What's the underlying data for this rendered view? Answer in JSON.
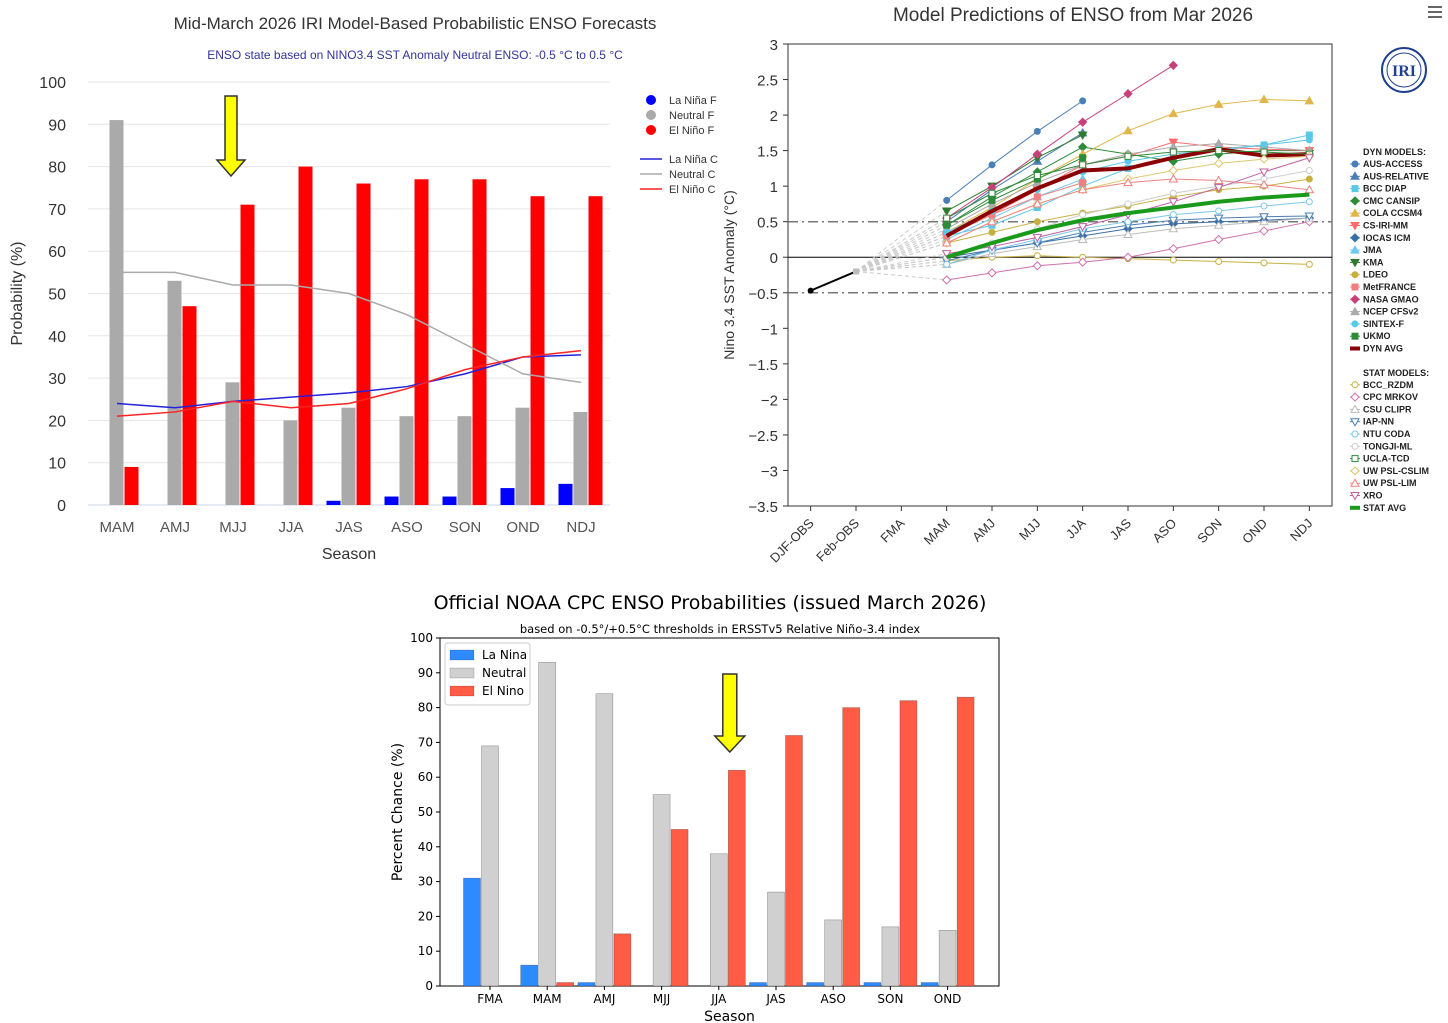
{
  "charts_meta": {
    "menu_icon": "hamburger-menu-icon",
    "iri_logo_text": "IRI"
  },
  "chart_data": [
    {
      "type": "bar",
      "title": "Mid-March 2026 IRI Model-Based Probabilistic ENSO Forecasts",
      "subtitle": "ENSO state based on NINO3.4 SST Anomaly Neutral ENSO: -0.5 °C to 0.5 °C",
      "xlabel": "Season",
      "ylabel": "Probability (%)",
      "ylim": [
        0,
        100
      ],
      "yticks": [
        0,
        10,
        20,
        30,
        40,
        50,
        60,
        70,
        80,
        90,
        100
      ],
      "categories": [
        "MAM",
        "AMJ",
        "MJJ",
        "JJA",
        "JAS",
        "ASO",
        "SON",
        "OND",
        "NDJ"
      ],
      "series": [
        {
          "name": "La Niña F",
          "color": "#0000ff",
          "values": [
            0,
            0,
            0,
            0,
            1,
            2,
            2,
            4,
            5
          ]
        },
        {
          "name": "Neutral F",
          "color": "#aaaaaa",
          "values": [
            91,
            53,
            29,
            20,
            23,
            21,
            21,
            23,
            22
          ]
        },
        {
          "name": "El Niño F",
          "color": "#ff0000",
          "values": [
            9,
            47,
            71,
            80,
            76,
            77,
            77,
            73,
            73
          ]
        }
      ],
      "lines": [
        {
          "name": "La Niña C",
          "color": "#2222dd",
          "values": [
            24,
            23,
            24.5,
            25.5,
            26.5,
            28,
            31,
            35,
            35.5
          ]
        },
        {
          "name": "Neutral C",
          "color": "#aaaaaa",
          "values": [
            55,
            55,
            52,
            52,
            50,
            45,
            38,
            31,
            29
          ]
        },
        {
          "name": "El Niño C",
          "color": "#ff2222",
          "values": [
            21,
            22,
            24.5,
            23,
            24,
            27.5,
            32,
            35,
            36.5
          ]
        }
      ],
      "arrow_at": "MJJ",
      "legend_position": "top-right"
    },
    {
      "type": "line",
      "title": "Model Predictions of ENSO from Mar 2026",
      "ylabel": "Nino 3.4 SST Anomaly (°C)",
      "ylim": [
        -3.5,
        3
      ],
      "yticks": [
        "3",
        "2.5",
        "2",
        "1.5",
        "1",
        "0.5",
        "0",
        "−0.5",
        "−1",
        "−1.5",
        "−2",
        "−2.5",
        "−3",
        "−3.5"
      ],
      "categories": [
        "DJF-OBS",
        "Feb-OBS",
        "FMA",
        "MAM",
        "AMJ",
        "MJJ",
        "JJA",
        "JAS",
        "ASO",
        "SON",
        "OND",
        "NDJ"
      ],
      "observed": [
        -0.47,
        -0.2
      ],
      "dyn_models_title": "DYN MODELS:",
      "stat_models_title": "STAT MODELS:",
      "series": [
        {
          "name": "AUS-ACCESS",
          "group": "dyn",
          "color": "#4a7fb5",
          "marker": "circle",
          "values": [
            null,
            null,
            null,
            0.8,
            1.3,
            1.77,
            2.2,
            null,
            null,
            null,
            null,
            null
          ]
        },
        {
          "name": "AUS-RELATIVE",
          "group": "dyn",
          "color": "#4a7fb5",
          "marker": "triangle",
          "values": [
            null,
            null,
            null,
            0.5,
            0.95,
            1.35,
            1.75,
            null,
            null,
            null,
            null,
            null
          ]
        },
        {
          "name": "BCC DIAP",
          "group": "dyn",
          "color": "#5bc8e8",
          "marker": "square",
          "values": [
            null,
            null,
            null,
            0.3,
            0.45,
            0.7,
            1.0,
            1.25,
            1.4,
            1.5,
            1.58,
            1.72
          ]
        },
        {
          "name": "CMC CANSIP",
          "group": "dyn",
          "color": "#2e8b3a",
          "marker": "diamond",
          "values": [
            null,
            null,
            null,
            0.45,
            0.85,
            1.2,
            1.55,
            1.45,
            1.35,
            1.45,
            1.5,
            1.5
          ]
        },
        {
          "name": "COLA CCSM4",
          "group": "dyn",
          "color": "#e0b64a",
          "marker": "triangle",
          "values": [
            null,
            null,
            null,
            0.35,
            0.7,
            1.1,
            1.45,
            1.78,
            2.02,
            2.15,
            2.22,
            2.2
          ]
        },
        {
          "name": "CS-IRI-MM",
          "group": "dyn",
          "color": "#ff6a6a",
          "marker": "triangle-down",
          "values": [
            null,
            null,
            null,
            0.3,
            0.6,
            0.95,
            1.3,
            1.42,
            1.62,
            1.55,
            1.52,
            1.5
          ]
        },
        {
          "name": "IOCAS ICM",
          "group": "dyn",
          "color": "#3a6fa5",
          "marker": "diamond",
          "values": [
            null,
            null,
            null,
            0.0,
            0.1,
            0.2,
            0.3,
            0.4,
            0.47,
            0.5,
            0.52,
            0.55
          ]
        },
        {
          "name": "JMA",
          "group": "dyn",
          "color": "#6fc8f0",
          "marker": "triangle",
          "values": [
            null,
            null,
            null,
            0.25,
            0.55,
            0.85,
            1.1,
            null,
            null,
            null,
            null,
            null
          ]
        },
        {
          "name": "KMA",
          "group": "dyn",
          "color": "#2e7a2e",
          "marker": "triangle-down",
          "values": [
            null,
            null,
            null,
            0.65,
            1.0,
            1.4,
            1.72,
            null,
            null,
            null,
            null,
            null
          ]
        },
        {
          "name": "LDEO",
          "group": "dyn",
          "color": "#c8b040",
          "marker": "circle",
          "values": [
            null,
            null,
            null,
            0.2,
            0.35,
            0.5,
            0.62,
            0.72,
            0.85,
            0.95,
            1.0,
            1.1
          ]
        },
        {
          "name": "MetFRANCE",
          "group": "dyn",
          "color": "#f08080",
          "marker": "square",
          "values": [
            null,
            null,
            null,
            0.3,
            0.6,
            0.85,
            1.05,
            null,
            null,
            null,
            null,
            null
          ]
        },
        {
          "name": "NASA GMAO",
          "group": "dyn",
          "color": "#c8407a",
          "marker": "diamond",
          "values": [
            null,
            null,
            null,
            0.55,
            0.98,
            1.45,
            1.9,
            2.3,
            2.7,
            null,
            null,
            null
          ]
        },
        {
          "name": "NCEP CFSv2",
          "group": "dyn",
          "color": "#aaaaaa",
          "marker": "triangle",
          "values": [
            null,
            null,
            null,
            0.4,
            0.75,
            1.05,
            1.3,
            1.45,
            1.55,
            1.6,
            1.55,
            1.5
          ]
        },
        {
          "name": "SINTEX-F",
          "group": "dyn",
          "color": "#5bc8e8",
          "marker": "circle",
          "values": [
            null,
            null,
            null,
            0.35,
            0.65,
            0.95,
            1.2,
            1.35,
            1.45,
            1.52,
            1.58,
            1.65
          ]
        },
        {
          "name": "UKMO",
          "group": "dyn",
          "color": "#2e8b3a",
          "marker": "square",
          "values": [
            null,
            null,
            null,
            0.45,
            0.8,
            1.1,
            1.4,
            null,
            null,
            null,
            null,
            null
          ]
        },
        {
          "name": "DYN AVG",
          "group": "dyn",
          "color": "#8b0000",
          "marker": "none",
          "width": 4,
          "values": [
            null,
            null,
            null,
            0.3,
            0.65,
            0.97,
            1.22,
            1.25,
            1.4,
            1.52,
            1.43,
            1.45
          ]
        },
        {
          "name": "BCC_RZDM",
          "group": "stat",
          "color": "#c8b040",
          "marker": "circle-open",
          "values": [
            null,
            null,
            null,
            -0.05,
            0.0,
            0.02,
            0.0,
            -0.02,
            -0.04,
            -0.06,
            -0.08,
            -0.1
          ]
        },
        {
          "name": "CPC MRKOV",
          "group": "stat",
          "color": "#d070b0",
          "marker": "diamond-open",
          "values": [
            null,
            null,
            null,
            -0.32,
            -0.22,
            -0.12,
            -0.07,
            0.0,
            0.12,
            0.25,
            0.37,
            0.5
          ]
        },
        {
          "name": "CSU CLIPR",
          "group": "stat",
          "color": "#bbbbbb",
          "marker": "triangle-open",
          "values": [
            null,
            null,
            null,
            -0.1,
            0.05,
            0.15,
            0.25,
            0.32,
            0.4,
            0.45,
            0.5,
            0.55
          ]
        },
        {
          "name": "IAP-NN",
          "group": "stat",
          "color": "#4a7fb5",
          "marker": "triangle-down-open",
          "values": [
            null,
            null,
            null,
            -0.05,
            0.1,
            0.2,
            0.35,
            0.45,
            0.52,
            0.55,
            0.57,
            0.58
          ]
        },
        {
          "name": "NTU CODA",
          "group": "stat",
          "color": "#7ac8e8",
          "marker": "circle-open",
          "values": [
            null,
            null,
            null,
            -0.1,
            0.1,
            0.25,
            0.4,
            0.5,
            0.6,
            0.65,
            0.72,
            0.78
          ]
        },
        {
          "name": "TONGJI-ML",
          "group": "stat",
          "color": "#cccccc",
          "marker": "circle-open",
          "values": [
            null,
            null,
            null,
            0.0,
            0.2,
            0.4,
            0.6,
            0.75,
            0.9,
            1.0,
            1.1,
            1.22
          ]
        },
        {
          "name": "UCLA-TCD",
          "group": "stat",
          "color": "#2e8b3a",
          "marker": "square-open",
          "values": [
            null,
            null,
            null,
            0.55,
            0.9,
            1.15,
            1.3,
            1.42,
            1.48,
            1.5,
            1.48,
            1.45
          ]
        },
        {
          "name": "UW PSL-CSLIM",
          "group": "stat",
          "color": "#e0c870",
          "marker": "diamond-open",
          "values": [
            null,
            null,
            null,
            0.2,
            0.5,
            0.75,
            0.95,
            1.1,
            1.22,
            1.32,
            1.38,
            1.42
          ]
        },
        {
          "name": "UW PSL-LIM",
          "group": "stat",
          "color": "#f08080",
          "marker": "triangle-open",
          "values": [
            null,
            null,
            null,
            0.2,
            0.5,
            0.75,
            0.95,
            1.05,
            1.1,
            1.08,
            1.02,
            0.95
          ]
        },
        {
          "name": "XRO",
          "group": "stat",
          "color": "#c060a0",
          "marker": "triangle-down-open",
          "values": [
            null,
            null,
            null,
            0.05,
            0.15,
            0.28,
            0.43,
            0.6,
            0.78,
            0.98,
            1.2,
            1.4
          ]
        },
        {
          "name": "STAT AVG",
          "group": "stat",
          "color": "#1a9a1a",
          "marker": "none",
          "width": 4,
          "values": [
            null,
            null,
            null,
            0.0,
            0.2,
            0.38,
            0.52,
            0.62,
            0.7,
            0.78,
            0.84,
            0.88
          ]
        }
      ],
      "reference_lines": [
        0.5,
        -0.5
      ],
      "grid": false
    },
    {
      "type": "bar",
      "title": "Official NOAA CPC ENSO Probabilities (issued March 2026)",
      "subtitle": "based on -0.5°/+0.5°C thresholds in ERSSTv5 Relative Niño-3.4 index",
      "xlabel": "Season",
      "ylabel": "Percent Chance (%)",
      "ylim": [
        0,
        100
      ],
      "yticks": [
        0,
        10,
        20,
        30,
        40,
        50,
        60,
        70,
        80,
        90,
        100
      ],
      "categories": [
        "FMA",
        "MAM",
        "AMJ",
        "MJJ",
        "JJA",
        "JAS",
        "ASO",
        "SON",
        "OND"
      ],
      "series": [
        {
          "name": "La Nina",
          "color": "#2e8bff",
          "values": [
            31,
            6,
            1,
            0,
            0,
            1,
            1,
            1,
            1
          ]
        },
        {
          "name": "Neutral",
          "color": "#d0d0d0",
          "values": [
            69,
            93,
            84,
            55,
            38,
            27,
            19,
            17,
            16
          ]
        },
        {
          "name": "El Nino",
          "color": "#ff5b45",
          "values": [
            0,
            1,
            15,
            45,
            62,
            72,
            80,
            82,
            83
          ]
        }
      ],
      "arrow_at": "JJA",
      "legend_position": "top-left"
    }
  ]
}
